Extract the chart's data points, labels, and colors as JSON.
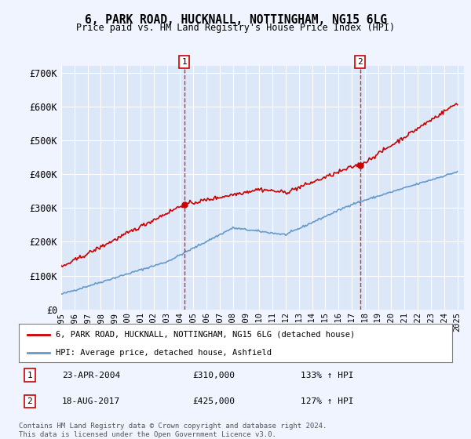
{
  "title": "6, PARK ROAD, HUCKNALL, NOTTINGHAM, NG15 6LG",
  "subtitle": "Price paid vs. HM Land Registry's House Price Index (HPI)",
  "red_line_label": "6, PARK ROAD, HUCKNALL, NOTTINGHAM, NG15 6LG (detached house)",
  "blue_line_label": "HPI: Average price, detached house, Ashfield",
  "annotation1_date": "23-APR-2004",
  "annotation1_price": "£310,000",
  "annotation1_hpi": "133% ↑ HPI",
  "annotation2_date": "18-AUG-2017",
  "annotation2_price": "£425,000",
  "annotation2_hpi": "127% ↑ HPI",
  "footer": "Contains HM Land Registry data © Crown copyright and database right 2024.\nThis data is licensed under the Open Government Licence v3.0.",
  "background_color": "#f0f4ff",
  "plot_bg_color": "#dce8f8",
  "red_color": "#cc0000",
  "blue_color": "#6699cc",
  "ylim": [
    0,
    720000
  ],
  "yticks": [
    0,
    100000,
    200000,
    300000,
    400000,
    500000,
    600000,
    700000
  ],
  "x_start_year": 1995,
  "x_end_year": 2025
}
